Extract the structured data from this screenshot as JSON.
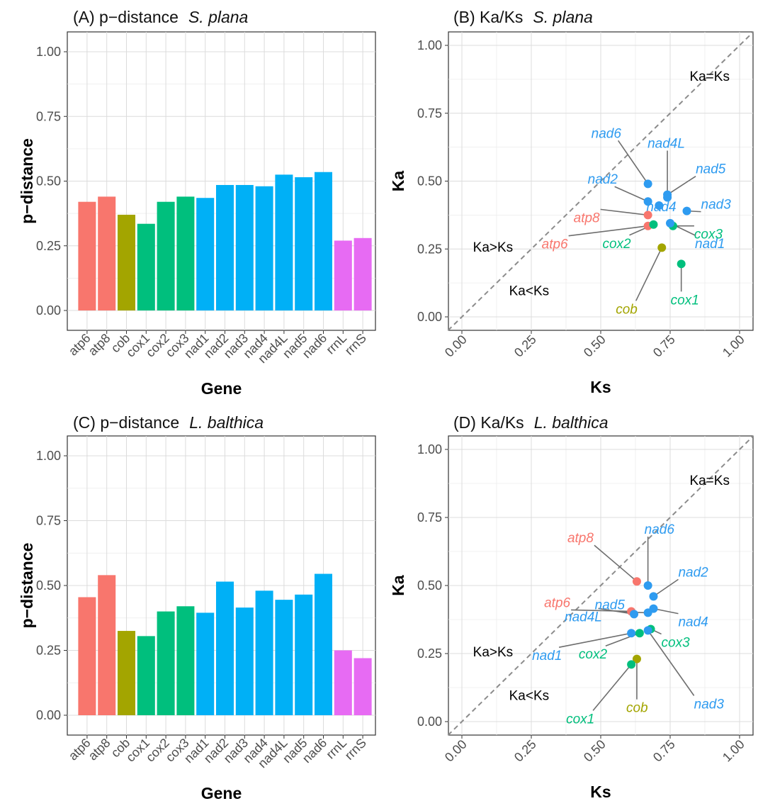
{
  "gene_colors": {
    "atp6": "#F8766D",
    "atp8": "#F8766D",
    "cob": "#A3A500",
    "cox1": "#00BF7D",
    "cox2": "#00BF7D",
    "cox3": "#00BF7D",
    "nad1": "#00B0F6",
    "nad2": "#00B0F6",
    "nad3": "#00B0F6",
    "nad4": "#00B0F6",
    "nad4L": "#00B0F6",
    "nad5": "#00B0F6",
    "nad6": "#00B0F6",
    "rrnL": "#E76BF3",
    "rrnS": "#E76BF3"
  },
  "scatter_colors": {
    "atp": "#F8766D",
    "cob": "#A3A500",
    "cox": "#00BF7D",
    "nad": "#2E9BF0"
  },
  "chart_data": [
    {
      "panel": "A",
      "type": "bar",
      "title_prefix": "(A) p−distance",
      "title_species": "S. plana",
      "xlabel": "Gene",
      "ylabel": "p−distance",
      "ylim": [
        0,
        1
      ],
      "yticks": [
        "0.00",
        "0.25",
        "0.50",
        "0.75",
        "1.00"
      ],
      "categories": [
        "atp6",
        "atp8",
        "cob",
        "cox1",
        "cox2",
        "cox3",
        "nad1",
        "nad2",
        "nad3",
        "nad4",
        "nad4L",
        "nad5",
        "nad6",
        "rrnL",
        "rrnS"
      ],
      "values": [
        0.42,
        0.44,
        0.37,
        0.335,
        0.42,
        0.44,
        0.435,
        0.485,
        0.485,
        0.48,
        0.525,
        0.515,
        0.535,
        0.27,
        0.28
      ]
    },
    {
      "panel": "B",
      "type": "scatter",
      "title_prefix": "(B) Ka/Ks",
      "title_species": "S. plana",
      "xlabel": "Ks",
      "ylabel": "Ka",
      "xlim": [
        0,
        1
      ],
      "ylim": [
        0,
        1
      ],
      "xticks": [
        "0.00",
        "0.25",
        "0.50",
        "0.75",
        "1.00"
      ],
      "yticks": [
        "0.00",
        "0.25",
        "0.50",
        "0.75",
        "1.00"
      ],
      "diag_label": "Ka=Ks",
      "above_label": "Ka>Ks",
      "below_label": "Ka<Ks",
      "points": [
        {
          "gene": "atp6",
          "ks": 0.67,
          "ka": 0.335
        },
        {
          "gene": "atp8",
          "ks": 0.67,
          "ka": 0.375
        },
        {
          "gene": "cob",
          "ks": 0.72,
          "ka": 0.255
        },
        {
          "gene": "cox1",
          "ks": 0.79,
          "ka": 0.195
        },
        {
          "gene": "cox2",
          "ks": 0.69,
          "ka": 0.34
        },
        {
          "gene": "cox3",
          "ks": 0.76,
          "ka": 0.335
        },
        {
          "gene": "nad1",
          "ks": 0.75,
          "ka": 0.345
        },
        {
          "gene": "nad2",
          "ks": 0.67,
          "ka": 0.425
        },
        {
          "gene": "nad3",
          "ks": 0.81,
          "ka": 0.39
        },
        {
          "gene": "nad4",
          "ks": 0.71,
          "ka": 0.41
        },
        {
          "gene": "nad4L",
          "ks": 0.74,
          "ka": 0.44
        },
        {
          "gene": "nad5",
          "ks": 0.74,
          "ka": 0.45
        },
        {
          "gene": "nad6",
          "ks": 0.67,
          "ka": 0.49
        }
      ]
    },
    {
      "panel": "C",
      "type": "bar",
      "title_prefix": "(C) p−distance",
      "title_species": "L. balthica",
      "xlabel": "Gene",
      "ylabel": "p−distance",
      "ylim": [
        0,
        1
      ],
      "yticks": [
        "0.00",
        "0.25",
        "0.50",
        "0.75",
        "1.00"
      ],
      "categories": [
        "atp6",
        "atp8",
        "cob",
        "cox1",
        "cox2",
        "cox3",
        "nad1",
        "nad2",
        "nad3",
        "nad4",
        "nad4L",
        "nad5",
        "nad6",
        "rrnL",
        "rrnS"
      ],
      "values": [
        0.455,
        0.54,
        0.325,
        0.305,
        0.4,
        0.42,
        0.395,
        0.515,
        0.415,
        0.48,
        0.445,
        0.465,
        0.545,
        0.25,
        0.22
      ]
    },
    {
      "panel": "D",
      "type": "scatter",
      "title_prefix": "(D) Ka/Ks",
      "title_species": "L. balthica",
      "xlabel": "Ks",
      "ylabel": "Ka",
      "xlim": [
        0,
        1
      ],
      "ylim": [
        0,
        1
      ],
      "xticks": [
        "0.00",
        "0.25",
        "0.50",
        "0.75",
        "1.00"
      ],
      "yticks": [
        "0.00",
        "0.25",
        "0.50",
        "0.75",
        "1.00"
      ],
      "diag_label": "Ka=Ks",
      "above_label": "Ka>Ks",
      "below_label": "Ka<Ks",
      "points": [
        {
          "gene": "atp6",
          "ks": 0.61,
          "ka": 0.405
        },
        {
          "gene": "atp8",
          "ks": 0.63,
          "ka": 0.515
        },
        {
          "gene": "cob",
          "ks": 0.63,
          "ka": 0.23
        },
        {
          "gene": "cox1",
          "ks": 0.61,
          "ka": 0.21
        },
        {
          "gene": "cox2",
          "ks": 0.64,
          "ka": 0.325
        },
        {
          "gene": "cox3",
          "ks": 0.68,
          "ka": 0.34
        },
        {
          "gene": "nad1",
          "ks": 0.61,
          "ka": 0.325
        },
        {
          "gene": "nad2",
          "ks": 0.69,
          "ka": 0.46
        },
        {
          "gene": "nad3",
          "ks": 0.67,
          "ka": 0.335
        },
        {
          "gene": "nad4",
          "ks": 0.69,
          "ka": 0.415
        },
        {
          "gene": "nad4L",
          "ks": 0.62,
          "ka": 0.395
        },
        {
          "gene": "nad5",
          "ks": 0.67,
          "ka": 0.4
        },
        {
          "gene": "nad6",
          "ks": 0.67,
          "ka": 0.5
        }
      ]
    }
  ]
}
